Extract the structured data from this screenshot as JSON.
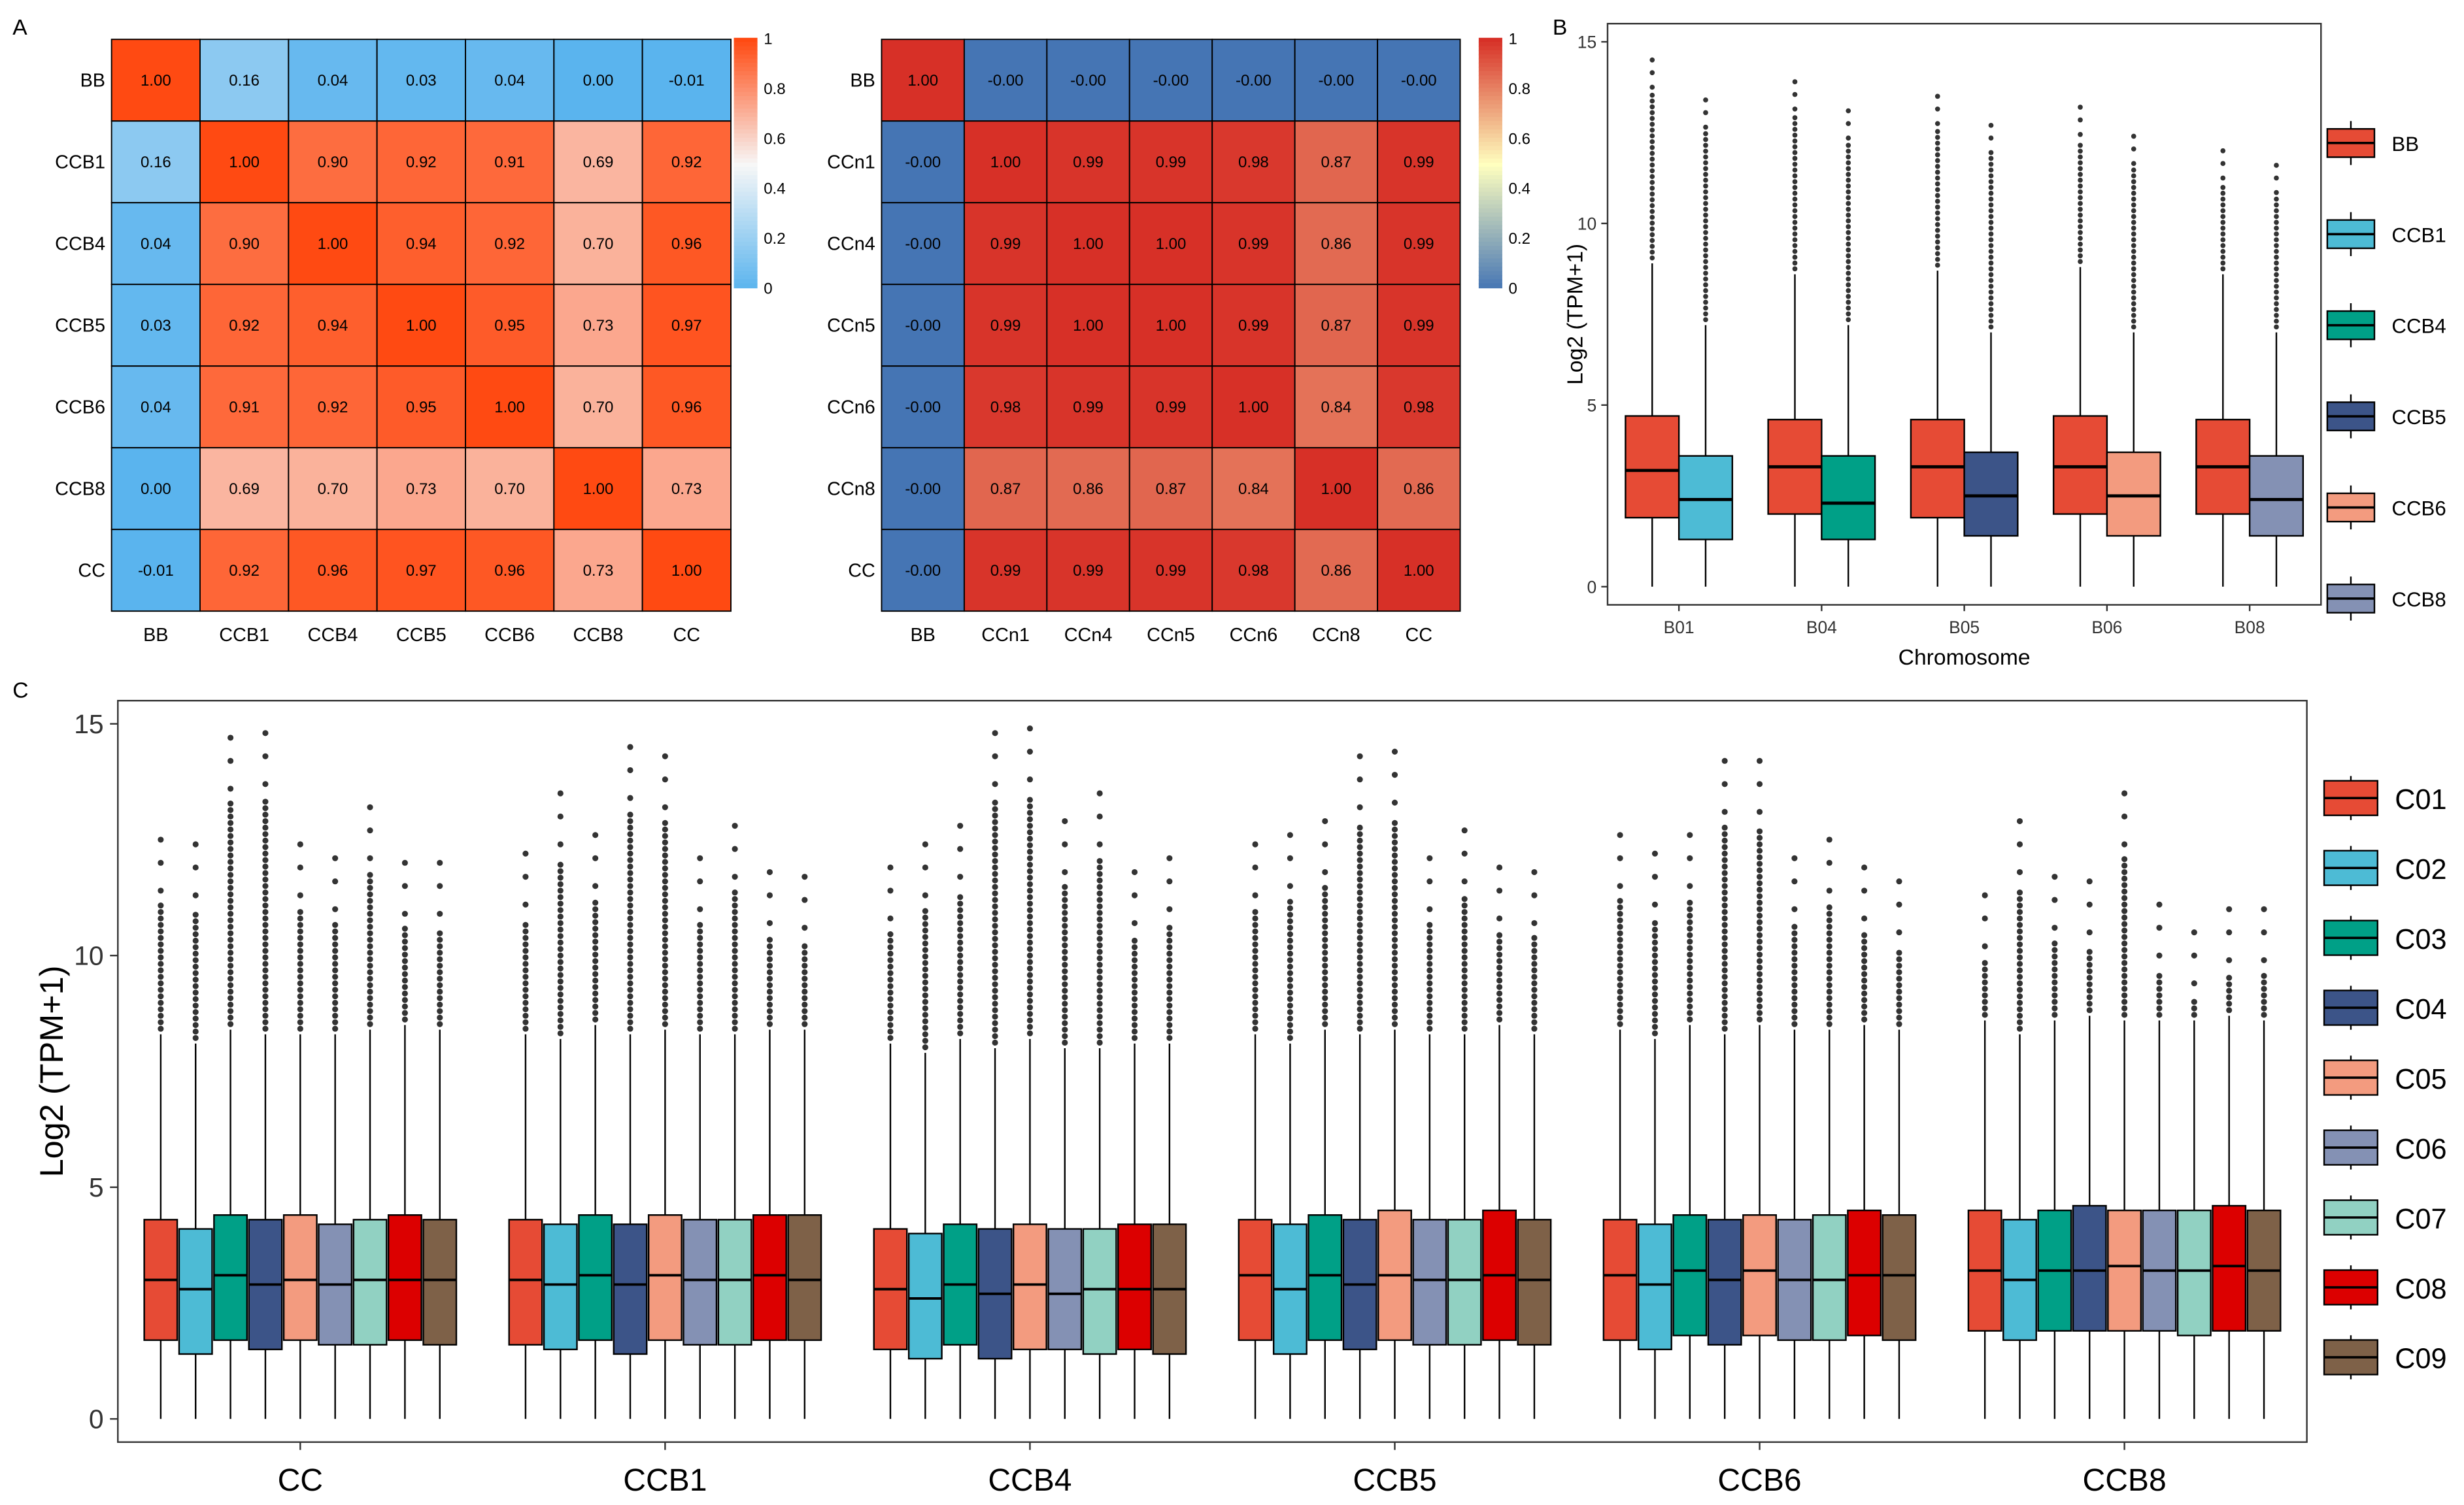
{
  "panel_labels": {
    "a": "A",
    "b": "B",
    "c": "C"
  },
  "chart_data": [
    {
      "id": "A1",
      "type": "heatmap",
      "rows": [
        "BB",
        "CCB1",
        "CCB4",
        "CCB5",
        "CCB6",
        "CCB8",
        "CC"
      ],
      "cols": [
        "BB",
        "CCB1",
        "CCB4",
        "CCB5",
        "CCB6",
        "CCB8",
        "CC"
      ],
      "values": [
        [
          1.0,
          0.16,
          0.04,
          0.03,
          0.04,
          0.0,
          -0.01
        ],
        [
          0.16,
          1.0,
          0.9,
          0.92,
          0.91,
          0.69,
          0.92
        ],
        [
          0.04,
          0.9,
          1.0,
          0.94,
          0.92,
          0.7,
          0.96
        ],
        [
          0.03,
          0.92,
          0.94,
          1.0,
          0.95,
          0.73,
          0.97
        ],
        [
          0.04,
          0.91,
          0.92,
          0.95,
          1.0,
          0.7,
          0.96
        ],
        [
          0.0,
          0.69,
          0.7,
          0.73,
          0.7,
          1.0,
          0.73
        ],
        [
          -0.01,
          0.92,
          0.96,
          0.97,
          0.96,
          0.73,
          1.0
        ]
      ],
      "labels": [
        [
          "1.00",
          "0.16",
          "0.04",
          "0.03",
          "0.04",
          "0.00",
          "-0.01"
        ],
        [
          "0.16",
          "1.00",
          "0.90",
          "0.92",
          "0.91",
          "0.69",
          "0.92"
        ],
        [
          "0.04",
          "0.90",
          "1.00",
          "0.94",
          "0.92",
          "0.70",
          "0.96"
        ],
        [
          "0.03",
          "0.92",
          "0.94",
          "1.00",
          "0.95",
          "0.73",
          "0.97"
        ],
        [
          "0.04",
          "0.91",
          "0.92",
          "0.95",
          "1.00",
          "0.70",
          "0.96"
        ],
        [
          "0.00",
          "0.69",
          "0.70",
          "0.73",
          "0.70",
          "1.00",
          "0.73"
        ],
        [
          "-0.01",
          "0.92",
          "0.96",
          "0.97",
          "0.96",
          "0.73",
          "1.00"
        ]
      ],
      "color_scale": {
        "low": "#5AB4EE",
        "mid": "#F7F7F7",
        "high": "#FF4A12",
        "min": 0,
        "mid_value": 0.5,
        "max": 1
      },
      "legend_ticks": [
        "1",
        "0.8",
        "0.6",
        "0.4",
        "0.2",
        "0"
      ],
      "legend_values": [
        1,
        0.8,
        0.6,
        0.4,
        0.2,
        0
      ]
    },
    {
      "id": "A2",
      "type": "heatmap",
      "rows": [
        "BB",
        "CCn1",
        "CCn4",
        "CCn5",
        "CCn6",
        "CCn8",
        "CC"
      ],
      "cols": [
        "BB",
        "CCn1",
        "CCn4",
        "CCn5",
        "CCn6",
        "CCn8",
        "CC"
      ],
      "values": [
        [
          1.0,
          0.0,
          0.0,
          0.0,
          0.0,
          0.0,
          0.0
        ],
        [
          0.0,
          1.0,
          0.99,
          0.99,
          0.98,
          0.87,
          0.99
        ],
        [
          0.0,
          0.99,
          1.0,
          1.0,
          0.99,
          0.86,
          0.99
        ],
        [
          0.0,
          0.99,
          1.0,
          1.0,
          0.99,
          0.87,
          0.99
        ],
        [
          0.0,
          0.98,
          0.99,
          0.99,
          1.0,
          0.84,
          0.98
        ],
        [
          0.0,
          0.87,
          0.86,
          0.87,
          0.84,
          1.0,
          0.86
        ],
        [
          0.0,
          0.99,
          0.99,
          0.99,
          0.98,
          0.86,
          1.0
        ]
      ],
      "labels": [
        [
          "1.00",
          "-0.00",
          "-0.00",
          "-0.00",
          "-0.00",
          "-0.00",
          "-0.00"
        ],
        [
          "-0.00",
          "1.00",
          "0.99",
          "0.99",
          "0.98",
          "0.87",
          "0.99"
        ],
        [
          "-0.00",
          "0.99",
          "1.00",
          "1.00",
          "0.99",
          "0.86",
          "0.99"
        ],
        [
          "-0.00",
          "0.99",
          "1.00",
          "1.00",
          "0.99",
          "0.87",
          "0.99"
        ],
        [
          "-0.00",
          "0.98",
          "0.99",
          "0.99",
          "1.00",
          "0.84",
          "0.98"
        ],
        [
          "-0.00",
          "0.87",
          "0.86",
          "0.87",
          "0.84",
          "1.00",
          "0.86"
        ],
        [
          "-0.00",
          "0.99",
          "0.99",
          "0.99",
          "0.98",
          "0.86",
          "1.00"
        ]
      ],
      "color_scale": {
        "low": "#4575B4",
        "mid": "#FFFFBF",
        "high": "#D73027",
        "min": 0,
        "mid_value": 0.5,
        "max": 1
      },
      "legend_ticks": [
        "1",
        "0.8",
        "0.6",
        "0.4",
        "0.2",
        "0"
      ],
      "legend_values": [
        1,
        0.8,
        0.6,
        0.4,
        0.2,
        0
      ]
    },
    {
      "id": "B",
      "type": "box",
      "title": "",
      "xlabel": "Chromosome",
      "ylabel": "Log2 (TPM+1)",
      "ylim": [
        -0.5,
        15.5
      ],
      "yticks": [
        0,
        5,
        10,
        15
      ],
      "categories": [
        "B01",
        "B04",
        "B05",
        "B06",
        "B08"
      ],
      "series": [
        {
          "name": "BB",
          "color": "#E64B35",
          "stats": [
            [
              0,
              1.9,
              3.2,
              4.7,
              8.9,
              14.5
            ],
            [
              0,
              2.0,
              3.3,
              4.6,
              8.6,
              13.9
            ],
            [
              0,
              1.9,
              3.3,
              4.6,
              8.7,
              13.5
            ],
            [
              0,
              2.0,
              3.3,
              4.7,
              8.8,
              13.2
            ],
            [
              0,
              2.0,
              3.3,
              4.6,
              8.6,
              12.0
            ]
          ]
        },
        {
          "name": "CCB1",
          "color": "#4DBBD5",
          "stats": [
            [
              0,
              1.3,
              2.4,
              3.6,
              7.2,
              13.4
            ],
            [
              0,
              1.3,
              2.3,
              3.6,
              7.2,
              13.1
            ],
            [
              0,
              1.4,
              2.5,
              3.7,
              7.0,
              12.7
            ],
            [
              0,
              1.4,
              2.5,
              3.7,
              7.0,
              12.4
            ],
            [
              0,
              1.4,
              2.4,
              3.6,
              7.0,
              11.6
            ]
          ]
        }
      ],
      "series_colors_by_category": [
        "#4DBBD5",
        "#00A087",
        "#3C5488",
        "#F39B7F",
        "#8491B4"
      ],
      "legend": [
        "BB",
        "CCB1",
        "CCB4",
        "CCB5",
        "CCB6",
        "CCB8"
      ],
      "legend_colors": [
        "#E64B35",
        "#4DBBD5",
        "#00A087",
        "#3C5488",
        "#F39B7F",
        "#8491B4"
      ]
    },
    {
      "id": "C",
      "type": "box",
      "title": "",
      "xlabel": "",
      "ylabel": "Log2 (TPM+1)",
      "ylim": [
        -0.5,
        15.5
      ],
      "yticks": [
        0,
        5,
        10,
        15
      ],
      "categories": [
        "CC",
        "CCB1",
        "CCB4",
        "CCB5",
        "CCB6",
        "CCB8"
      ],
      "legend": [
        "C01",
        "C02",
        "C03",
        "C04",
        "C05",
        "C06",
        "C07",
        "C08",
        "C09"
      ],
      "legend_colors": [
        "#E64B35",
        "#4DBBD5",
        "#00A087",
        "#3C5488",
        "#F39B7F",
        "#8491B4",
        "#91D1C2",
        "#DC0000",
        "#7E6148"
      ],
      "medians": [
        [
          3.0,
          2.8,
          3.1,
          2.9,
          3.0,
          2.9,
          3.0,
          3.0,
          3.0
        ],
        [
          3.0,
          2.9,
          3.1,
          2.9,
          3.1,
          3.0,
          3.0,
          3.1,
          3.0
        ],
        [
          2.8,
          2.6,
          2.9,
          2.7,
          2.9,
          2.7,
          2.8,
          2.8,
          2.8
        ],
        [
          3.1,
          2.8,
          3.1,
          2.9,
          3.1,
          3.0,
          3.0,
          3.1,
          3.0
        ],
        [
          3.1,
          2.9,
          3.2,
          3.0,
          3.2,
          3.0,
          3.0,
          3.1,
          3.1
        ],
        [
          3.2,
          3.0,
          3.2,
          3.2,
          3.3,
          3.2,
          3.2,
          3.3,
          3.2
        ]
      ],
      "q1": [
        [
          1.7,
          1.4,
          1.7,
          1.5,
          1.7,
          1.6,
          1.6,
          1.7,
          1.6
        ],
        [
          1.6,
          1.5,
          1.7,
          1.4,
          1.7,
          1.6,
          1.6,
          1.7,
          1.7
        ],
        [
          1.5,
          1.3,
          1.6,
          1.3,
          1.5,
          1.5,
          1.4,
          1.5,
          1.4
        ],
        [
          1.7,
          1.4,
          1.7,
          1.5,
          1.7,
          1.6,
          1.6,
          1.7,
          1.6
        ],
        [
          1.7,
          1.5,
          1.8,
          1.6,
          1.8,
          1.7,
          1.7,
          1.8,
          1.7
        ],
        [
          1.9,
          1.7,
          1.9,
          1.9,
          1.9,
          1.9,
          1.8,
          1.9,
          1.9
        ]
      ],
      "q3": [
        [
          4.3,
          4.1,
          4.4,
          4.3,
          4.4,
          4.2,
          4.3,
          4.4,
          4.3
        ],
        [
          4.3,
          4.2,
          4.4,
          4.2,
          4.4,
          4.3,
          4.3,
          4.4,
          4.4
        ],
        [
          4.1,
          4.0,
          4.2,
          4.1,
          4.2,
          4.1,
          4.1,
          4.2,
          4.2
        ],
        [
          4.3,
          4.2,
          4.4,
          4.3,
          4.5,
          4.3,
          4.3,
          4.5,
          4.3
        ],
        [
          4.3,
          4.2,
          4.4,
          4.3,
          4.4,
          4.3,
          4.4,
          4.5,
          4.4
        ],
        [
          4.5,
          4.3,
          4.5,
          4.6,
          4.5,
          4.5,
          4.5,
          4.6,
          4.5
        ]
      ],
      "whisker_high": [
        [
          8.3,
          8.1,
          8.4,
          8.3,
          8.3,
          8.3,
          8.4,
          8.5,
          8.4
        ],
        [
          8.3,
          8.2,
          8.5,
          8.3,
          8.4,
          8.3,
          8.3,
          8.4,
          8.4
        ],
        [
          8.1,
          7.9,
          8.2,
          8.0,
          8.2,
          8.0,
          8.0,
          8.1,
          8.1
        ],
        [
          8.3,
          8.1,
          8.4,
          8.3,
          8.4,
          8.3,
          8.3,
          8.5,
          8.3
        ],
        [
          8.4,
          8.2,
          8.5,
          8.3,
          8.5,
          8.4,
          8.4,
          8.5,
          8.4
        ],
        [
          8.6,
          8.3,
          8.6,
          8.7,
          8.6,
          8.6,
          8.6,
          8.7,
          8.6
        ]
      ],
      "max_outlier": [
        [
          12.5,
          12.4,
          14.7,
          14.8,
          12.4,
          12.1,
          13.2,
          12.0,
          12.0
        ],
        [
          12.2,
          13.5,
          12.6,
          14.5,
          14.3,
          12.1,
          12.8,
          11.8,
          11.7
        ],
        [
          11.9,
          12.4,
          12.8,
          14.8,
          14.9,
          12.9,
          13.5,
          11.8,
          12.1
        ],
        [
          12.4,
          12.6,
          12.9,
          14.3,
          14.4,
          12.1,
          12.7,
          11.9,
          11.8
        ],
        [
          12.6,
          12.2,
          12.6,
          14.2,
          14.2,
          12.1,
          12.5,
          11.9,
          11.6
        ],
        [
          11.3,
          12.9,
          11.7,
          11.6,
          13.5,
          11.1,
          10.5,
          11.0,
          11.0
        ]
      ]
    }
  ]
}
